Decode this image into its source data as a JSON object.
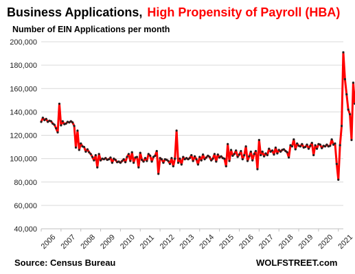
{
  "chart_data": {
    "type": "line",
    "title_part1": "Business Applications,",
    "title_part2": "High Propensity of Payroll (HBA)",
    "subtitle": "Number of EIN Applications per month",
    "source": "Source: Census Bureau",
    "watermark": "WOLFSTREET.com",
    "y_ticks": [
      "200,000",
      "180,000",
      "160,000",
      "140,000",
      "120,000",
      "100,000",
      "80,000",
      "60,000",
      "40,000"
    ],
    "x_ticks": [
      "2006",
      "2007",
      "2008",
      "2009",
      "2010",
      "2011",
      "2012",
      "2013",
      "2014",
      "2015",
      "2016",
      "2017",
      "2018",
      "2019",
      "2020",
      "2021"
    ],
    "ylim": [
      40000,
      200000
    ],
    "grid": true,
    "colors": {
      "line": "#ff0000",
      "marker": "#222222",
      "title_accent": "#ff0000"
    },
    "series": [
      {
        "frequency": "monthly",
        "start": "2006-01",
        "values": [
          131500,
          135000,
          133000,
          134000,
          131500,
          132500,
          132000,
          130000,
          129000,
          126000,
          122500,
          147000,
          128500,
          132000,
          129500,
          130000,
          131500,
          131000,
          132000,
          131000,
          128000,
          109500,
          124000,
          107500,
          113000,
          110500,
          110000,
          106000,
          108000,
          105500,
          104000,
          101500,
          98500,
          103000,
          92500,
          104000,
          98500,
          100000,
          99500,
          100500,
          99000,
          99500,
          101000,
          96500,
          100000,
          99000,
          97000,
          97500,
          96500,
          98000,
          99500,
          97000,
          101500,
          104000,
          98000,
          105500,
          96500,
          101000,
          101500,
          92500,
          105000,
          99000,
          97500,
          100500,
          98000,
          104000,
          102500,
          97500,
          101500,
          102500,
          106500,
          87000,
          100500,
          99500,
          96500,
          99500,
          99000,
          98000,
          95500,
          100500,
          93500,
          100000,
          124000,
          96500,
          100000,
          95000,
          101500,
          99500,
          100500,
          99500,
          100500,
          103000,
          98000,
          102000,
          99500,
          95000,
          101500,
          98500,
          103500,
          99500,
          101000,
          102500,
          101500,
          98500,
          100000,
          104000,
          97500,
          103500,
          101000,
          102000,
          100500,
          100000,
          93500,
          112500,
          98000,
          107500,
          102500,
          104000,
          107000,
          101500,
          103500,
          106500,
          99500,
          103000,
          110500,
          98000,
          102000,
          106000,
          98500,
          104000,
          106500,
          91000,
          116000,
          103000,
          106000,
          102000,
          104500,
          103000,
          108500,
          106000,
          107000,
          103500,
          109500,
          104500,
          107500,
          106000,
          107500,
          108000,
          106500,
          105500,
          101000,
          111500,
          110500,
          116500,
          108000,
          113000,
          111000,
          110500,
          112500,
          109500,
          110000,
          112000,
          108500,
          111000,
          113500,
          103000,
          111500,
          108500,
          112500,
          112000,
          109000,
          111000,
          110500,
          112000,
          110500,
          111000,
          116500,
          112000,
          113000,
          95500,
          82000,
          111500,
          128000,
          191000,
          168000,
          155000,
          142000,
          138000,
          116000,
          165000,
          147000,
          163000,
          166000,
          166000,
          152000,
          151000,
          146000,
          145500
        ]
      }
    ]
  }
}
